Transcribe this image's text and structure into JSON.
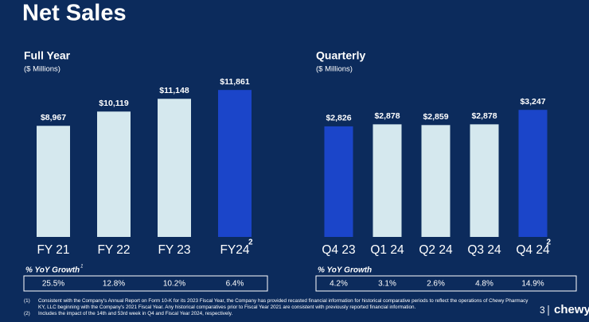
{
  "page": {
    "title": "Net Sales",
    "page_number": "3",
    "logo": "chewy",
    "footnotes": [
      {
        "marker": "(1)",
        "text": "Consistent with the Company's Annual Report on Form 10-K for its 2023 Fiscal Year, the Company has provided recasted financial information for historical comparative periods to reflect the operations of Chewy Pharmacy KY, LLC beginning with the Company's 2021 Fiscal Year. Any historical comparatives prior to Fiscal Year 2021 are consistent with previously reported financial information."
      },
      {
        "marker": "(2)",
        "text": "Includes the impact of the 14th and 53rd week in Q4 and Fiscal Year 2024, respectively."
      }
    ]
  },
  "chart_data": [
    {
      "type": "bar",
      "title": "Full Year",
      "subtitle": "($ Millions)",
      "categories": [
        "FY 21",
        "FY 22",
        "FY 23",
        "FY24"
      ],
      "category_notes": [
        null,
        null,
        null,
        "2"
      ],
      "values": [
        8967,
        10119,
        11148,
        11861
      ],
      "value_labels": [
        "$8,967",
        "$10,119",
        "$11,148",
        "$11,861"
      ],
      "colors": [
        "#d5e8ee",
        "#d5e8ee",
        "#d5e8ee",
        "#1b45c9"
      ],
      "ylim": [
        0,
        12000
      ],
      "growth": {
        "title": "% YoY Growth",
        "title_note": "1",
        "values": [
          "25.5%",
          "12.8%",
          "10.2%",
          "6.4%"
        ]
      }
    },
    {
      "type": "bar",
      "title": "Quarterly",
      "subtitle": "($ Millions)",
      "categories": [
        "Q4 23",
        "Q1 24",
        "Q2 24",
        "Q3 24",
        "Q4 24"
      ],
      "category_notes": [
        null,
        null,
        null,
        null,
        "2"
      ],
      "values": [
        2826,
        2878,
        2859,
        2878,
        3247
      ],
      "value_labels": [
        "$2,826",
        "$2,878",
        "$2,859",
        "$2,878",
        "$3,247"
      ],
      "colors": [
        "#1b45c9",
        "#d5e8ee",
        "#d5e8ee",
        "#d5e8ee",
        "#1b45c9"
      ],
      "ylim": [
        0,
        3800
      ],
      "growth": {
        "title": "% YoY Growth",
        "values": [
          "4.2%",
          "3.1%",
          "2.6%",
          "4.8%",
          "14.9%"
        ]
      }
    }
  ]
}
